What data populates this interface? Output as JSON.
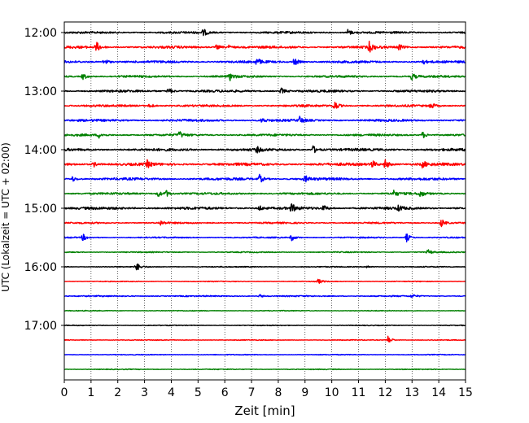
{
  "chart_data": {
    "type": "line",
    "title": "",
    "xlabel": "Zeit  [min]",
    "ylabel": "UTC (Lokalzeit = UTC + 02:00)",
    "xlim": [
      0,
      15
    ],
    "x_ticks": [
      "0",
      "1",
      "2",
      "3",
      "4",
      "5",
      "6",
      "7",
      "8",
      "9",
      "10",
      "11",
      "12",
      "13",
      "14",
      "15"
    ],
    "y_ticks": [
      "12:00",
      "13:00",
      "14:00",
      "15:00",
      "16:00",
      "17:00"
    ],
    "grid": "vertical dotted",
    "trace_interval_min": 15,
    "trace_colors": [
      "#000000",
      "#ff0000",
      "#0000ff",
      "#008000"
    ],
    "traces": [
      {
        "start": "12:00",
        "color": "#000000",
        "noise": 1.3,
        "events": [
          [
            5.2,
            4
          ],
          [
            10.6,
            4
          ]
        ]
      },
      {
        "start": "12:15",
        "color": "#ff0000",
        "noise": 1.5,
        "events": [
          [
            1.2,
            6
          ],
          [
            5.7,
            3
          ],
          [
            6.1,
            3
          ],
          [
            11.4,
            6
          ],
          [
            12.5,
            4
          ]
        ]
      },
      {
        "start": "12:30",
        "color": "#0000ff",
        "noise": 1.4,
        "events": [
          [
            1.5,
            4
          ],
          [
            7.2,
            4
          ],
          [
            8.6,
            5
          ],
          [
            13.4,
            3
          ]
        ]
      },
      {
        "start": "12:45",
        "color": "#008000",
        "noise": 1.3,
        "events": [
          [
            0.7,
            4
          ],
          [
            6.2,
            4
          ],
          [
            13.0,
            4
          ]
        ]
      },
      {
        "start": "13:00",
        "color": "#000000",
        "noise": 1.4,
        "events": [
          [
            3.9,
            4
          ],
          [
            8.1,
            4
          ]
        ]
      },
      {
        "start": "13:15",
        "color": "#ff0000",
        "noise": 1.3,
        "events": [
          [
            3.2,
            3
          ],
          [
            10.1,
            6
          ],
          [
            13.7,
            4
          ]
        ]
      },
      {
        "start": "13:30",
        "color": "#0000ff",
        "noise": 1.4,
        "events": [
          [
            7.4,
            3
          ],
          [
            8.8,
            4
          ]
        ]
      },
      {
        "start": "13:45",
        "color": "#008000",
        "noise": 1.3,
        "events": [
          [
            1.3,
            3
          ],
          [
            4.3,
            4
          ],
          [
            13.4,
            4
          ]
        ]
      },
      {
        "start": "14:00",
        "color": "#000000",
        "noise": 1.6,
        "events": [
          [
            7.2,
            3
          ],
          [
            9.3,
            5
          ]
        ]
      },
      {
        "start": "14:15",
        "color": "#ff0000",
        "noise": 1.7,
        "events": [
          [
            1.1,
            3
          ],
          [
            3.1,
            4
          ],
          [
            11.5,
            5
          ],
          [
            12.0,
            6
          ],
          [
            13.4,
            4
          ]
        ]
      },
      {
        "start": "14:30",
        "color": "#0000ff",
        "noise": 1.5,
        "events": [
          [
            0.3,
            3
          ],
          [
            7.3,
            5
          ],
          [
            9.0,
            4
          ]
        ]
      },
      {
        "start": "14:45",
        "color": "#008000",
        "noise": 1.3,
        "events": [
          [
            3.5,
            4
          ],
          [
            3.8,
            4
          ],
          [
            12.3,
            4
          ],
          [
            13.3,
            4
          ]
        ]
      },
      {
        "start": "15:00",
        "color": "#000000",
        "noise": 1.6,
        "events": [
          [
            7.3,
            3
          ],
          [
            8.5,
            5
          ],
          [
            9.7,
            3
          ],
          [
            12.5,
            3
          ]
        ]
      },
      {
        "start": "15:15",
        "color": "#ff0000",
        "noise": 1.0,
        "events": [
          [
            3.6,
            3
          ],
          [
            14.1,
            5
          ]
        ]
      },
      {
        "start": "15:30",
        "color": "#0000ff",
        "noise": 0.8,
        "events": [
          [
            0.7,
            4
          ],
          [
            8.5,
            4
          ],
          [
            12.8,
            5
          ]
        ]
      },
      {
        "start": "15:45",
        "color": "#008000",
        "noise": 0.7,
        "events": [
          [
            13.6,
            3
          ]
        ]
      },
      {
        "start": "16:00",
        "color": "#000000",
        "noise": 0.6,
        "events": [
          [
            2.7,
            5
          ],
          [
            11.3,
            2
          ]
        ]
      },
      {
        "start": "16:15",
        "color": "#ff0000",
        "noise": 0.5,
        "events": [
          [
            9.5,
            3
          ]
        ]
      },
      {
        "start": "16:30",
        "color": "#0000ff",
        "noise": 0.8,
        "events": [
          [
            7.3,
            2
          ],
          [
            13.0,
            2
          ]
        ]
      },
      {
        "start": "16:45",
        "color": "#008000",
        "noise": 0.5,
        "events": []
      },
      {
        "start": "17:00",
        "color": "#000000",
        "noise": 0.5,
        "events": []
      },
      {
        "start": "17:15",
        "color": "#ff0000",
        "noise": 0.5,
        "events": [
          [
            12.1,
            5
          ]
        ]
      },
      {
        "start": "17:30",
        "color": "#0000ff",
        "noise": 0.5,
        "events": []
      },
      {
        "start": "17:45",
        "color": "#008000",
        "noise": 0.5,
        "events": []
      }
    ]
  }
}
